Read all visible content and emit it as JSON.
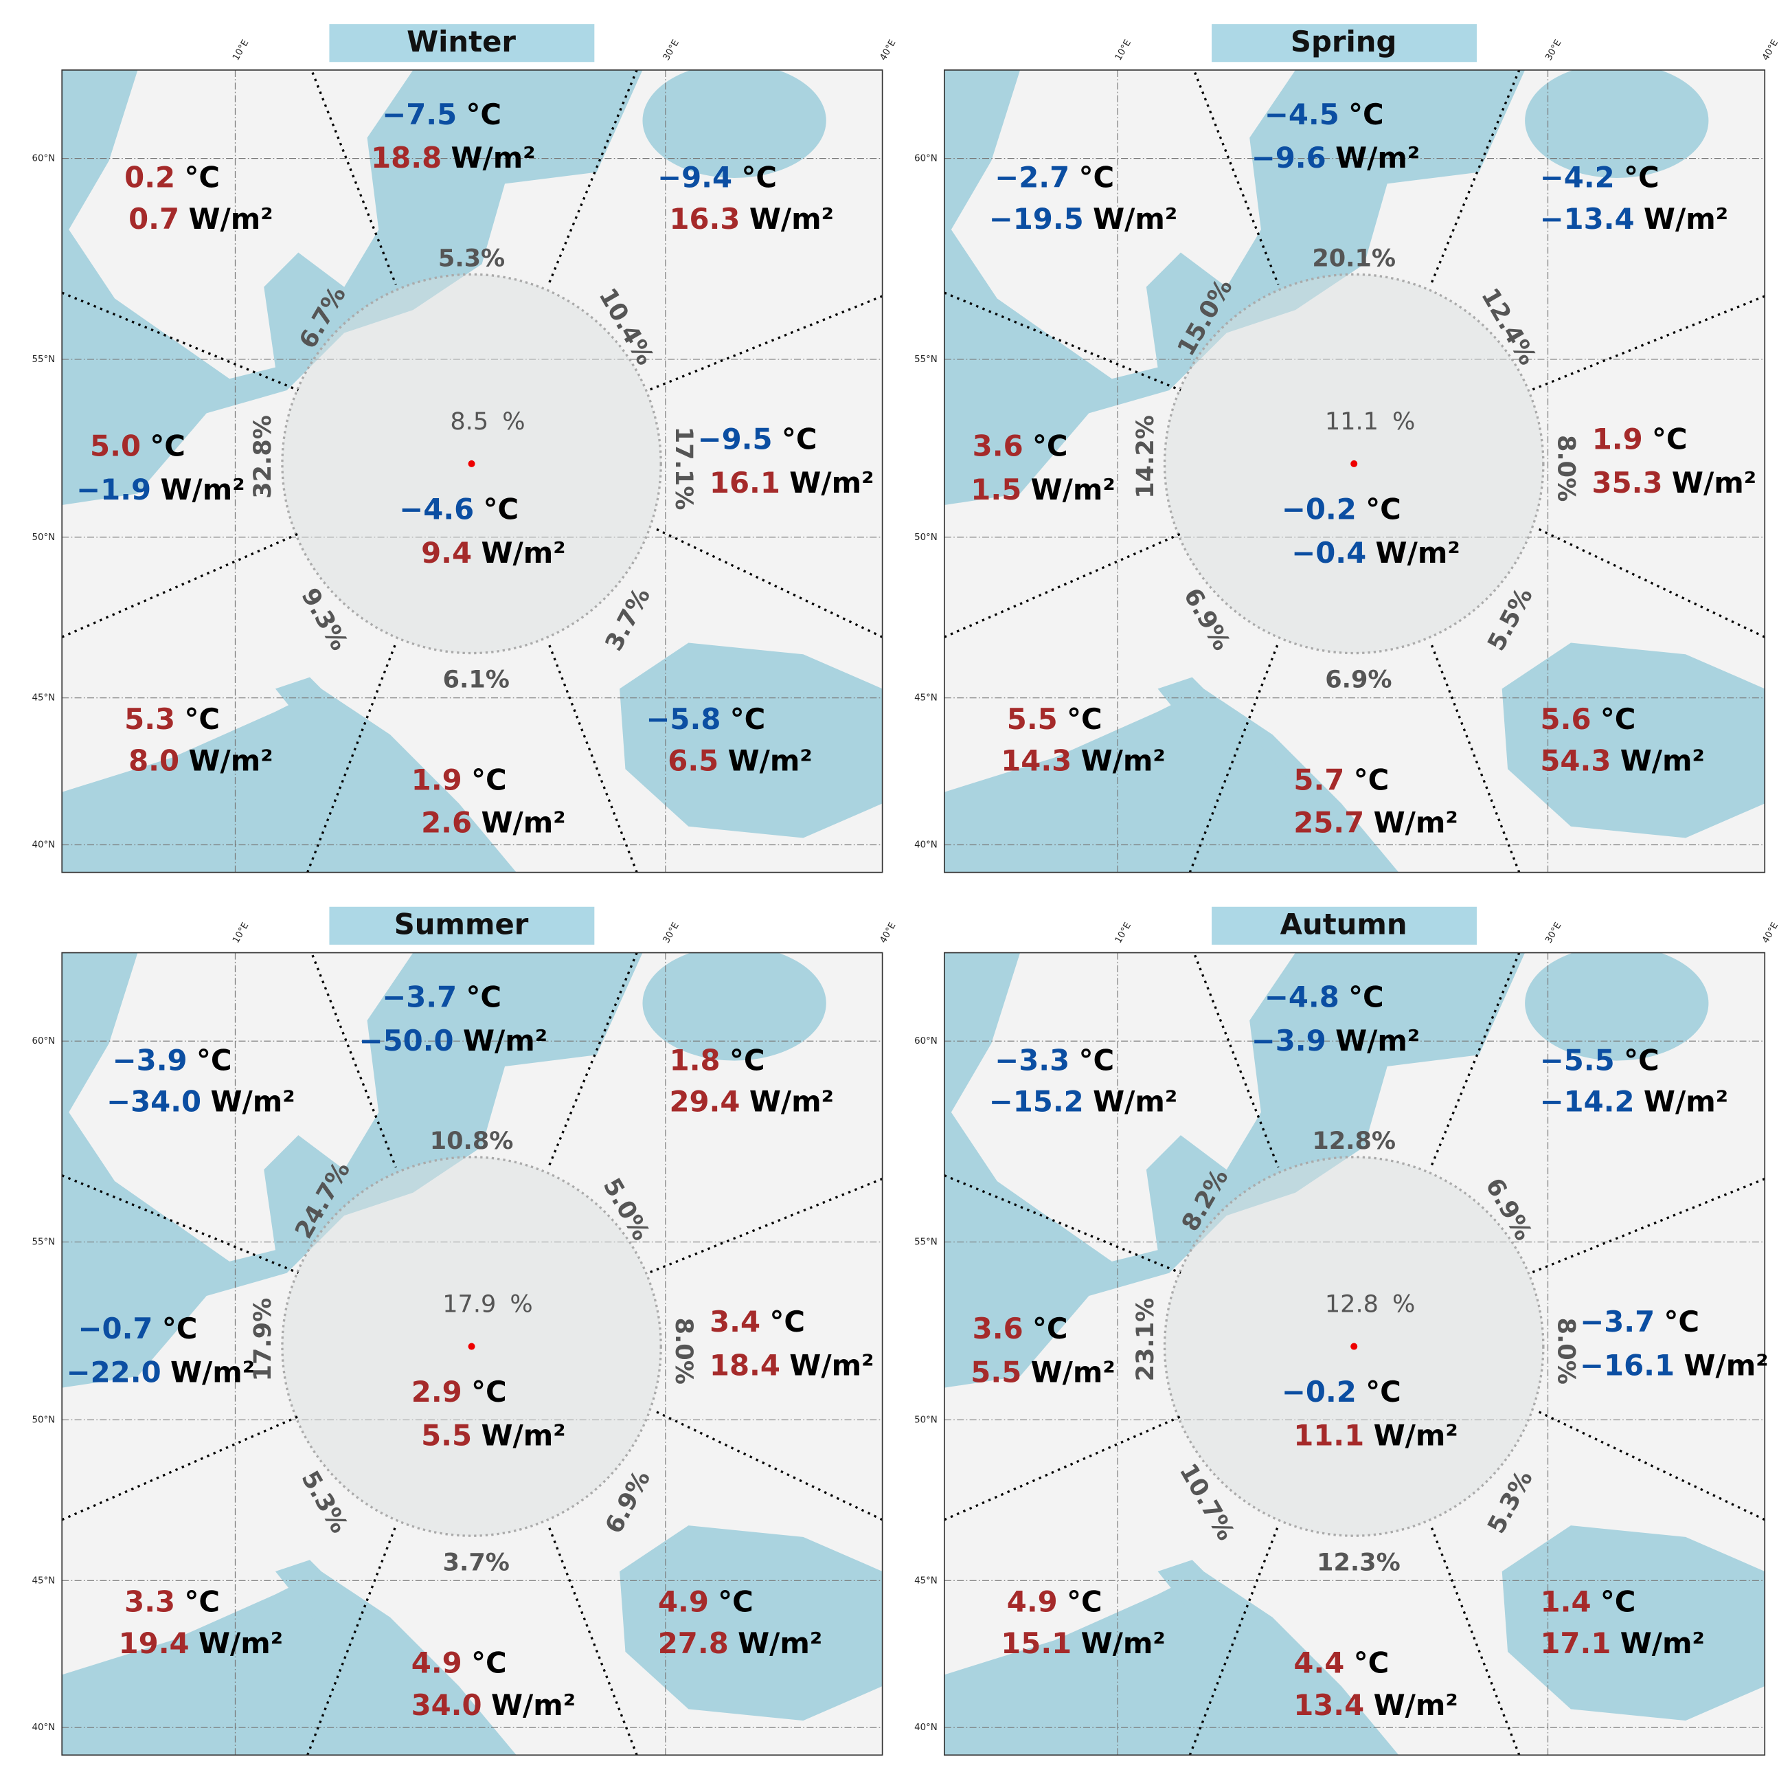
{
  "units": {
    "temp": "°C",
    "flux": "W/m²",
    "percent": "%"
  },
  "axes": {
    "lon": [
      "10°E",
      "30°E",
      "40°E"
    ],
    "lat": [
      "60°N",
      "55°N",
      "50°N",
      "45°N",
      "40°N"
    ]
  },
  "panels": [
    {
      "title": "Winter",
      "center": {
        "share": "8.5",
        "temp": "−4.6",
        "flux": "9.4"
      },
      "sectors": [
        {
          "share": "5.3%",
          "temp": "−7.5",
          "flux": "18.8"
        },
        {
          "share": "10.4%",
          "temp": "−9.4",
          "flux": "16.3"
        },
        {
          "share": "17.1%",
          "temp": "−9.5",
          "flux": "16.1"
        },
        {
          "share": "3.7%",
          "temp": "−5.8",
          "flux": "6.5"
        },
        {
          "share": "6.1%",
          "temp": "1.9",
          "flux": "2.6"
        },
        {
          "share": "9.3%",
          "temp": "5.3",
          "flux": "8.0"
        },
        {
          "share": "32.8%",
          "temp": "5.0",
          "flux": "−1.9"
        },
        {
          "share": "6.7%",
          "temp": "0.2",
          "flux": "0.7"
        }
      ]
    },
    {
      "title": "Spring",
      "center": {
        "share": "11.1",
        "temp": "−0.2",
        "flux": "−0.4"
      },
      "sectors": [
        {
          "share": "20.1%",
          "temp": "−4.5",
          "flux": "−9.6"
        },
        {
          "share": "12.4%",
          "temp": "−4.2",
          "flux": "−13.4"
        },
        {
          "share": "8.0%",
          "temp": "1.9",
          "flux": "35.3"
        },
        {
          "share": "5.5%",
          "temp": "5.6",
          "flux": "54.3"
        },
        {
          "share": "6.9%",
          "temp": "5.7",
          "flux": "25.7"
        },
        {
          "share": "6.9%",
          "temp": "5.5",
          "flux": "14.3"
        },
        {
          "share": "14.2%",
          "temp": "3.6",
          "flux": "1.5"
        },
        {
          "share": "15.0%",
          "temp": "−2.7",
          "flux": "−19.5"
        }
      ]
    },
    {
      "title": "Summer",
      "center": {
        "share": "17.9",
        "temp": "2.9",
        "flux": "5.5"
      },
      "sectors": [
        {
          "share": "10.8%",
          "temp": "−3.7",
          "flux": "−50.0"
        },
        {
          "share": "5.0%",
          "temp": "1.8",
          "flux": "29.4"
        },
        {
          "share": "8.0%",
          "temp": "3.4",
          "flux": "18.4"
        },
        {
          "share": "6.9%",
          "temp": "4.9",
          "flux": "27.8"
        },
        {
          "share": "3.7%",
          "temp": "4.9",
          "flux": "34.0"
        },
        {
          "share": "5.3%",
          "temp": "3.3",
          "flux": "19.4"
        },
        {
          "share": "17.9%",
          "temp": "−0.7",
          "flux": "−22.0"
        },
        {
          "share": "24.7%",
          "temp": "−3.9",
          "flux": "−34.0"
        }
      ]
    },
    {
      "title": "Autumn",
      "center": {
        "share": "12.8",
        "temp": "−0.2",
        "flux": "11.1"
      },
      "sectors": [
        {
          "share": "12.8%",
          "temp": "−4.8",
          "flux": "−3.9"
        },
        {
          "share": "6.9%",
          "temp": "−5.5",
          "flux": "−14.2"
        },
        {
          "share": "8.0%",
          "temp": "−3.7",
          "flux": "−16.1"
        },
        {
          "share": "5.3%",
          "temp": "1.4",
          "flux": "17.1"
        },
        {
          "share": "12.3%",
          "temp": "4.4",
          "flux": "13.4"
        },
        {
          "share": "10.7%",
          "temp": "4.9",
          "flux": "15.1"
        },
        {
          "share": "23.1%",
          "temp": "3.6",
          "flux": "5.5"
        },
        {
          "share": "8.2%",
          "temp": "−3.3",
          "flux": "−15.2"
        }
      ]
    }
  ]
}
